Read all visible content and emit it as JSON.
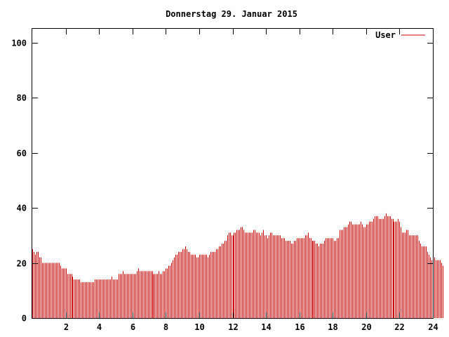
{
  "chart_data": {
    "type": "bar",
    "title": "Donnerstag 29. Januar 2015",
    "xlabel": "",
    "ylabel": "",
    "xlim": [
      0,
      24
    ],
    "ylim": [
      0,
      105
    ],
    "x_ticks": [
      2,
      4,
      6,
      8,
      10,
      12,
      14,
      16,
      18,
      20,
      22,
      24
    ],
    "x_tick_labels": [
      "2",
      "4",
      "6",
      "8",
      "10",
      "12",
      "14",
      "16",
      "18",
      "20",
      "22",
      "24"
    ],
    "y_ticks": [
      0,
      20,
      40,
      60,
      80,
      100
    ],
    "y_tick_labels": [
      "0",
      "20",
      "40",
      "60",
      "80",
      "100"
    ],
    "grid": false,
    "legend_position": "top-right",
    "colors": {
      "series": "#cc0000",
      "axes": "#000000",
      "background": "#ffffff"
    },
    "x_step_minutes": 5,
    "series": [
      {
        "name": "User",
        "values": [
          25,
          24,
          23,
          24,
          24,
          22,
          22,
          20,
          20,
          20,
          20,
          20,
          20,
          20,
          20,
          20,
          20,
          20,
          20,
          20,
          19,
          18,
          18,
          18,
          18,
          16,
          16,
          16,
          16,
          15,
          14,
          14,
          14,
          14,
          14,
          13,
          13,
          13,
          13,
          13,
          13,
          13,
          13,
          13,
          13,
          14,
          14,
          14,
          14,
          14,
          14,
          14,
          14,
          14,
          14,
          14,
          14,
          15,
          14,
          14,
          14,
          14,
          16,
          16,
          16,
          17,
          16,
          16,
          16,
          16,
          16,
          16,
          16,
          16,
          16,
          17,
          18,
          17,
          17,
          17,
          17,
          17,
          17,
          17,
          17,
          17,
          17,
          16,
          16,
          16,
          16,
          17,
          16,
          16,
          17,
          17,
          18,
          18,
          19,
          19,
          20,
          21,
          22,
          23,
          23,
          24,
          24,
          24,
          25,
          25,
          26,
          25,
          24,
          24,
          23,
          23,
          23,
          23,
          22,
          22,
          23,
          23,
          23,
          23,
          23,
          23,
          22,
          23,
          24,
          24,
          24,
          24,
          25,
          25,
          26,
          26,
          27,
          27,
          28,
          28,
          30,
          31,
          31,
          30,
          30,
          31,
          31,
          32,
          32,
          32,
          33,
          33,
          32,
          31,
          31,
          31,
          31,
          31,
          31,
          32,
          32,
          31,
          31,
          31,
          30,
          31,
          32,
          30,
          30,
          29,
          30,
          31,
          31,
          30,
          30,
          30,
          30,
          30,
          30,
          29,
          29,
          29,
          28,
          28,
          28,
          28,
          27,
          27,
          28,
          28,
          29,
          29,
          29,
          29,
          29,
          29,
          30,
          30,
          31,
          29,
          29,
          28,
          28,
          28,
          27,
          27,
          26,
          27,
          27,
          27,
          28,
          29,
          29,
          29,
          29,
          29,
          29,
          28,
          28,
          29,
          29,
          32,
          32,
          32,
          33,
          33,
          33,
          34,
          35,
          35,
          34,
          34,
          34,
          34,
          34,
          34,
          35,
          34,
          33,
          33,
          34,
          34,
          35,
          35,
          35,
          36,
          37,
          37,
          37,
          36,
          36,
          36,
          36,
          37,
          38,
          37,
          37,
          37,
          36,
          36,
          35,
          35,
          35,
          36,
          35,
          33,
          31,
          31,
          31,
          32,
          32,
          30,
          30,
          30,
          30,
          30,
          30,
          30,
          28,
          27,
          26,
          26,
          26,
          26,
          24,
          23,
          22,
          21,
          21,
          22,
          21,
          21,
          21,
          21,
          20,
          19
        ]
      }
    ]
  }
}
